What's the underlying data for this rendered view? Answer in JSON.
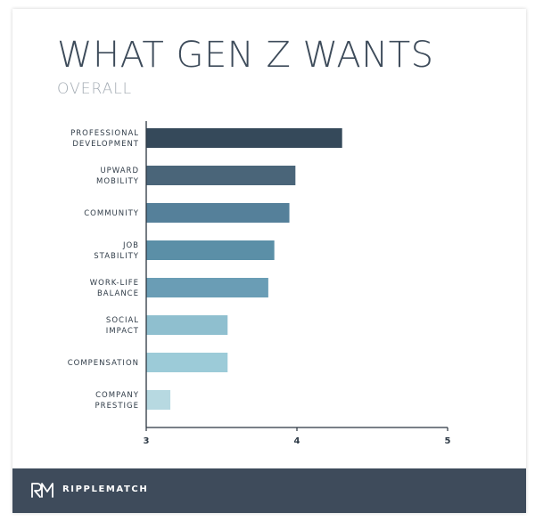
{
  "header": {
    "title": "WHAT GEN Z WANTS",
    "subtitle": "OVERALL"
  },
  "footer": {
    "brand": "RIPPLEMATCH",
    "logo": "ripplematch-logo"
  },
  "chart_data": {
    "type": "bar",
    "orientation": "horizontal",
    "title": "WHAT GEN Z WANTS",
    "subtitle": "OVERALL",
    "xlabel": "",
    "ylabel": "",
    "xlim": [
      3,
      5
    ],
    "xticks": [
      3,
      4,
      5
    ],
    "grid": false,
    "legend": "none",
    "categories": [
      [
        "PROFESSIONAL",
        "DEVELOPMENT"
      ],
      [
        "UPWARD",
        "MOBILITY"
      ],
      [
        "COMMUNITY"
      ],
      [
        "JOB",
        "STABILITY"
      ],
      [
        "WORK-LIFE",
        "BALANCE"
      ],
      [
        "SOCIAL",
        "IMPACT"
      ],
      [
        "COMPENSATION"
      ],
      [
        "COMPANY",
        "PRESTIGE"
      ]
    ],
    "values": [
      4.3,
      3.99,
      3.95,
      3.85,
      3.81,
      3.54,
      3.54,
      3.16
    ],
    "colors": [
      "#35495a",
      "#4a6579",
      "#55809a",
      "#5b8fa7",
      "#6a9db5",
      "#8fbfcf",
      "#9ccbd8",
      "#b7d9e1"
    ]
  }
}
